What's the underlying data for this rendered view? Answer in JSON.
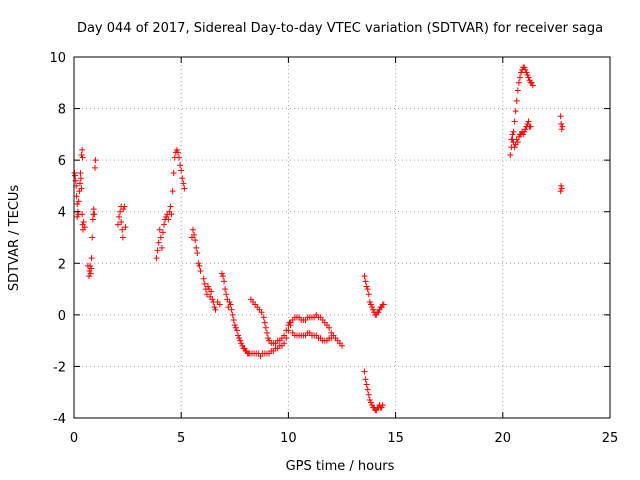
{
  "chart_data": {
    "type": "scatter",
    "title": "Day 044 of 2017, Sidereal Day-to-day VTEC variation (SDTVAR) for receiver saga",
    "xlabel": "GPS time / hours",
    "ylabel": "SDTVAR / TECUs",
    "xlim": [
      0,
      25
    ],
    "ylim": [
      -4,
      10
    ],
    "xticks": [
      0,
      5,
      10,
      15,
      20,
      25
    ],
    "yticks": [
      -4,
      -2,
      0,
      2,
      4,
      6,
      8,
      10
    ],
    "grid": true,
    "marker": "+",
    "series": [
      {
        "name": "SDTVAR",
        "color": "#ff0000",
        "points": [
          [
            0.02,
            5.5
          ],
          [
            0.05,
            5.4
          ],
          [
            0.08,
            5.2
          ],
          [
            0.1,
            5.0
          ],
          [
            0.12,
            4.6
          ],
          [
            0.15,
            4.3
          ],
          [
            0.18,
            4.0
          ],
          [
            0.2,
            3.9
          ],
          [
            0.22,
            4.4
          ],
          [
            0.25,
            4.8
          ],
          [
            0.28,
            5.1
          ],
          [
            0.3,
            5.5
          ],
          [
            0.32,
            5.3
          ],
          [
            0.35,
            4.9
          ],
          [
            0.38,
            3.9
          ],
          [
            0.4,
            3.5
          ],
          [
            0.42,
            3.3
          ],
          [
            0.45,
            3.6
          ],
          [
            0.35,
            6.2
          ],
          [
            0.38,
            6.4
          ],
          [
            0.4,
            6.1
          ],
          [
            0.15,
            3.8
          ],
          [
            0.5,
            3.4
          ],
          [
            0.7,
            1.5
          ],
          [
            0.72,
            1.7
          ],
          [
            0.75,
            1.9
          ],
          [
            0.78,
            1.6
          ],
          [
            0.8,
            1.8
          ],
          [
            0.82,
            2.2
          ],
          [
            0.85,
            3.0
          ],
          [
            0.88,
            3.7
          ],
          [
            0.9,
            3.9
          ],
          [
            0.92,
            4.1
          ],
          [
            0.95,
            3.9
          ],
          [
            0.98,
            5.7
          ],
          [
            1.0,
            6.0
          ],
          [
            0.65,
            1.9
          ],
          [
            2.05,
            3.5
          ],
          [
            2.1,
            3.8
          ],
          [
            2.15,
            4.0
          ],
          [
            2.2,
            3.6
          ],
          [
            2.25,
            3.3
          ],
          [
            2.3,
            4.1
          ],
          [
            2.35,
            4.2
          ],
          [
            2.4,
            3.4
          ],
          [
            2.2,
            4.2
          ],
          [
            2.28,
            3.0
          ],
          [
            3.85,
            2.2
          ],
          [
            3.9,
            2.5
          ],
          [
            3.95,
            2.8
          ],
          [
            4.0,
            3.3
          ],
          [
            4.05,
            3.0
          ],
          [
            4.1,
            2.6
          ],
          [
            4.15,
            3.2
          ],
          [
            4.2,
            3.5
          ],
          [
            4.25,
            3.7
          ],
          [
            4.3,
            3.8
          ],
          [
            4.35,
            3.9
          ],
          [
            4.4,
            3.7
          ],
          [
            4.45,
            4.0
          ],
          [
            4.5,
            4.2
          ],
          [
            4.55,
            3.9
          ],
          [
            4.6,
            4.8
          ],
          [
            4.65,
            5.5
          ],
          [
            4.7,
            6.1
          ],
          [
            4.75,
            6.3
          ],
          [
            4.8,
            6.4
          ],
          [
            4.85,
            6.3
          ],
          [
            4.9,
            6.1
          ],
          [
            4.95,
            5.8
          ],
          [
            5.0,
            5.6
          ],
          [
            5.05,
            5.3
          ],
          [
            5.1,
            5.1
          ],
          [
            5.15,
            4.9
          ],
          [
            5.5,
            3.0
          ],
          [
            5.55,
            3.3
          ],
          [
            5.6,
            3.1
          ],
          [
            5.65,
            2.9
          ],
          [
            5.7,
            2.6
          ],
          [
            5.75,
            2.4
          ],
          [
            5.8,
            2.0
          ],
          [
            5.85,
            1.9
          ],
          [
            5.9,
            1.7
          ],
          [
            6.05,
            1.4
          ],
          [
            6.1,
            1.2
          ],
          [
            6.15,
            1.0
          ],
          [
            6.2,
            0.8
          ],
          [
            6.25,
            1.1
          ],
          [
            6.3,
            1.0
          ],
          [
            6.35,
            0.7
          ],
          [
            6.4,
            0.9
          ],
          [
            6.45,
            0.6
          ],
          [
            6.5,
            0.5
          ],
          [
            6.55,
            0.3
          ],
          [
            6.6,
            0.2
          ],
          [
            6.7,
            0.5
          ],
          [
            6.8,
            0.4
          ],
          [
            6.9,
            1.6
          ],
          [
            6.95,
            1.5
          ],
          [
            7.0,
            1.3
          ],
          [
            7.05,
            1.0
          ],
          [
            7.1,
            0.8
          ],
          [
            7.15,
            0.6
          ],
          [
            7.2,
            0.3
          ],
          [
            7.25,
            0.5
          ],
          [
            7.3,
            0.4
          ],
          [
            7.35,
            0.2
          ],
          [
            7.4,
            0.0
          ],
          [
            7.45,
            -0.2
          ],
          [
            7.5,
            -0.4
          ],
          [
            7.55,
            -0.5
          ],
          [
            7.6,
            -0.6
          ],
          [
            7.65,
            -0.8
          ],
          [
            7.7,
            -0.9
          ],
          [
            7.75,
            -1.0
          ],
          [
            7.8,
            -1.1
          ],
          [
            7.85,
            -1.2
          ],
          [
            7.9,
            -1.3
          ],
          [
            7.95,
            -1.3
          ],
          [
            8.0,
            -1.4
          ],
          [
            8.05,
            -1.4
          ],
          [
            8.1,
            -1.5
          ],
          [
            8.15,
            -1.5
          ],
          [
            8.2,
            -1.5
          ],
          [
            8.3,
            -1.5
          ],
          [
            8.4,
            -1.5
          ],
          [
            8.5,
            -1.5
          ],
          [
            8.6,
            -1.5
          ],
          [
            8.7,
            -1.6
          ],
          [
            8.8,
            -1.5
          ],
          [
            8.9,
            -1.5
          ],
          [
            9.0,
            -1.5
          ],
          [
            9.1,
            -1.5
          ],
          [
            9.2,
            -1.4
          ],
          [
            9.3,
            -1.4
          ],
          [
            9.4,
            -1.3
          ],
          [
            9.5,
            -1.3
          ],
          [
            9.6,
            -1.2
          ],
          [
            9.7,
            -1.2
          ],
          [
            9.8,
            -1.1
          ],
          [
            9.9,
            -0.9
          ],
          [
            10.0,
            -0.6
          ],
          [
            10.1,
            -0.4
          ],
          [
            10.2,
            -0.2
          ],
          [
            10.3,
            -0.1
          ],
          [
            10.4,
            -0.1
          ],
          [
            10.5,
            -0.1
          ],
          [
            10.6,
            -0.2
          ],
          [
            10.7,
            -0.2
          ],
          [
            10.8,
            -0.2
          ],
          [
            10.9,
            -0.1
          ],
          [
            11.0,
            -0.1
          ],
          [
            11.1,
            -0.1
          ],
          [
            11.2,
            -0.1
          ],
          [
            11.3,
            0.0
          ],
          [
            11.4,
            -0.1
          ],
          [
            11.5,
            -0.1
          ],
          [
            11.6,
            -0.2
          ],
          [
            11.7,
            -0.3
          ],
          [
            11.8,
            -0.4
          ],
          [
            11.9,
            -0.5
          ],
          [
            12.0,
            -0.7
          ],
          [
            12.1,
            -0.8
          ],
          [
            12.2,
            -0.9
          ],
          [
            12.3,
            -1.0
          ],
          [
            12.4,
            -1.1
          ],
          [
            12.5,
            -1.2
          ],
          [
            8.25,
            0.6
          ],
          [
            8.35,
            0.5
          ],
          [
            8.45,
            0.4
          ],
          [
            8.55,
            0.3
          ],
          [
            8.65,
            0.2
          ],
          [
            8.75,
            0.1
          ],
          [
            8.85,
            -0.1
          ],
          [
            8.9,
            -0.3
          ],
          [
            8.95,
            -0.5
          ],
          [
            9.0,
            -0.7
          ],
          [
            9.05,
            -0.9
          ],
          [
            9.1,
            -1.0
          ],
          [
            9.2,
            -1.1
          ],
          [
            9.3,
            -1.1
          ],
          [
            9.4,
            -1.1
          ],
          [
            9.5,
            -1.0
          ],
          [
            9.6,
            -1.0
          ],
          [
            9.7,
            -0.9
          ],
          [
            9.8,
            -0.8
          ],
          [
            9.9,
            -0.6
          ],
          [
            10.0,
            -0.4
          ],
          [
            10.05,
            -0.3
          ],
          [
            10.1,
            -0.3
          ],
          [
            10.2,
            -0.7
          ],
          [
            10.3,
            -0.8
          ],
          [
            10.4,
            -0.8
          ],
          [
            10.5,
            -0.8
          ],
          [
            10.6,
            -0.8
          ],
          [
            10.7,
            -0.8
          ],
          [
            10.8,
            -0.8
          ],
          [
            10.9,
            -0.7
          ],
          [
            11.0,
            -0.7
          ],
          [
            11.1,
            -0.8
          ],
          [
            11.2,
            -0.8
          ],
          [
            11.3,
            -0.8
          ],
          [
            11.4,
            -0.9
          ],
          [
            11.5,
            -0.9
          ],
          [
            11.6,
            -1.0
          ],
          [
            11.7,
            -1.0
          ],
          [
            11.8,
            -1.0
          ],
          [
            11.9,
            -0.9
          ],
          [
            12.0,
            -0.9
          ],
          [
            13.55,
            1.5
          ],
          [
            13.6,
            1.3
          ],
          [
            13.65,
            1.1
          ],
          [
            13.7,
            1.0
          ],
          [
            13.75,
            0.8
          ],
          [
            13.8,
            0.5
          ],
          [
            13.85,
            0.4
          ],
          [
            13.9,
            0.3
          ],
          [
            13.95,
            0.2
          ],
          [
            14.0,
            0.1
          ],
          [
            14.05,
            0.0
          ],
          [
            14.1,
            0.0
          ],
          [
            14.15,
            0.1
          ],
          [
            14.2,
            0.1
          ],
          [
            14.25,
            0.2
          ],
          [
            14.3,
            0.3
          ],
          [
            14.35,
            0.3
          ],
          [
            14.4,
            0.4
          ],
          [
            14.45,
            0.4
          ],
          [
            13.55,
            -2.2
          ],
          [
            13.6,
            -2.5
          ],
          [
            13.65,
            -2.7
          ],
          [
            13.7,
            -2.9
          ],
          [
            13.75,
            -3.1
          ],
          [
            13.8,
            -3.3
          ],
          [
            13.85,
            -3.4
          ],
          [
            13.9,
            -3.5
          ],
          [
            13.95,
            -3.6
          ],
          [
            14.0,
            -3.6
          ],
          [
            14.05,
            -3.7
          ],
          [
            14.1,
            -3.7
          ],
          [
            14.15,
            -3.6
          ],
          [
            14.2,
            -3.6
          ],
          [
            14.25,
            -3.5
          ],
          [
            14.3,
            -3.6
          ],
          [
            14.35,
            -3.6
          ],
          [
            14.4,
            -3.5
          ],
          [
            20.35,
            6.2
          ],
          [
            20.4,
            6.5
          ],
          [
            20.45,
            6.8
          ],
          [
            20.5,
            7.1
          ],
          [
            20.55,
            7.5
          ],
          [
            20.6,
            7.9
          ],
          [
            20.65,
            8.3
          ],
          [
            20.7,
            8.7
          ],
          [
            20.75,
            9.0
          ],
          [
            20.8,
            9.2
          ],
          [
            20.85,
            9.4
          ],
          [
            20.9,
            9.5
          ],
          [
            20.95,
            9.6
          ],
          [
            21.0,
            9.6
          ],
          [
            21.05,
            9.5
          ],
          [
            21.1,
            9.4
          ],
          [
            21.15,
            9.3
          ],
          [
            21.2,
            9.2
          ],
          [
            21.25,
            9.1
          ],
          [
            21.3,
            9.0
          ],
          [
            21.35,
            9.0
          ],
          [
            21.4,
            8.9
          ],
          [
            20.4,
            6.8
          ],
          [
            20.45,
            7.0
          ],
          [
            20.5,
            6.7
          ],
          [
            20.55,
            6.5
          ],
          [
            20.6,
            6.6
          ],
          [
            20.65,
            6.8
          ],
          [
            20.7,
            6.7
          ],
          [
            20.75,
            6.9
          ],
          [
            20.8,
            7.0
          ],
          [
            20.85,
            7.0
          ],
          [
            20.9,
            7.1
          ],
          [
            20.95,
            7.0
          ],
          [
            21.0,
            7.1
          ],
          [
            21.05,
            7.2
          ],
          [
            21.1,
            7.3
          ],
          [
            21.15,
            7.4
          ],
          [
            21.2,
            7.5
          ],
          [
            21.25,
            7.3
          ],
          [
            21.3,
            7.3
          ],
          [
            22.7,
            7.7
          ],
          [
            22.72,
            7.4
          ],
          [
            22.75,
            7.2
          ],
          [
            22.78,
            7.3
          ],
          [
            22.7,
            4.8
          ],
          [
            22.72,
            5.0
          ],
          [
            22.75,
            4.9
          ]
        ]
      }
    ]
  }
}
